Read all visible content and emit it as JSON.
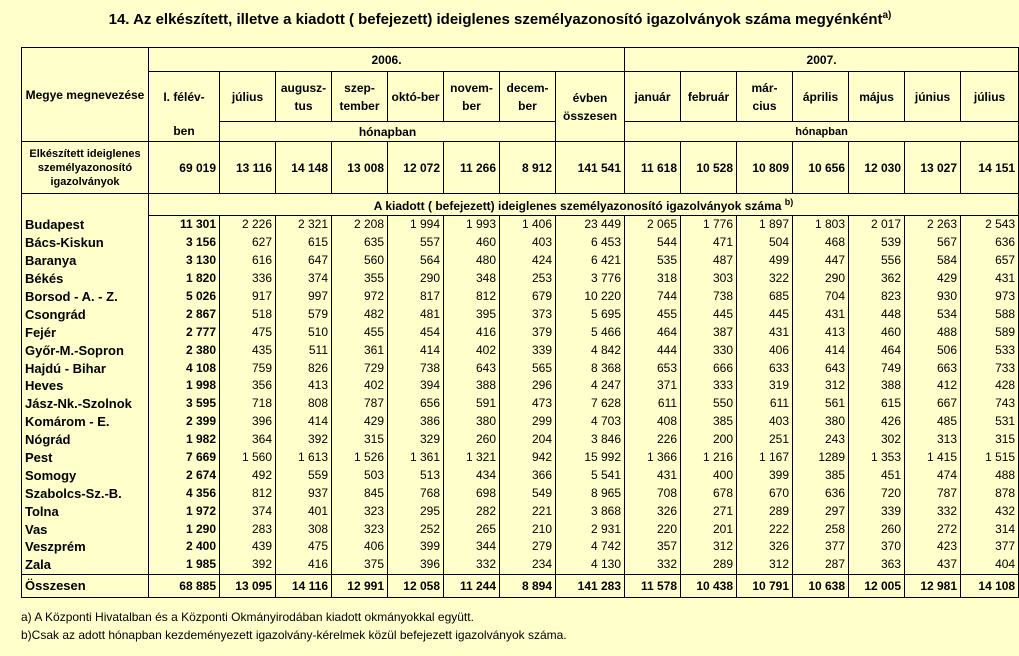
{
  "title": "14. Az elkészített, illetve a kiadott ( befejezett) ideiglenes személyazonosító  igazolványok száma megyénként",
  "title_sup": "a)",
  "header": {
    "county_col": "Megye megnevezése",
    "year2006": "2006.",
    "year2007": "2007.",
    "first_half_top": "I. félév-",
    "first_half_bottom": "ben",
    "months2006": [
      "július",
      "augusz-tus",
      "szep-tember",
      "októ-ber",
      "novem-ber",
      "decem-ber"
    ],
    "year_total": "évben összesen",
    "months2007": [
      "január",
      "február",
      "már-cius",
      "április",
      "május",
      "június",
      "július"
    ],
    "in_month": "hónapban"
  },
  "prepared_row": {
    "label": "Elkészített ideiglenes személyazonosító igazolványok",
    "values": [
      "69 019",
      "13 116",
      "14 148",
      "13 008",
      "12 072",
      "11 266",
      "8 912",
      "141 541",
      "11 618",
      "10 528",
      "10 809",
      "10 656",
      "12 030",
      "13 027",
      "14 151"
    ]
  },
  "issued_header": "A kiadott ( befejezett)  ideiglenes személyazonosító igazolványok száma",
  "issued_header_sup": "b)",
  "rows": [
    {
      "county": "Budapest",
      "values": [
        "11 301",
        "2 226",
        "2 321",
        "2 208",
        "1 994",
        "1 993",
        "1 406",
        "23 449",
        "2 065",
        "1 776",
        "1 897",
        "1 803",
        "2 017",
        "2 263",
        "2 543"
      ]
    },
    {
      "county": "Bács-Kiskun",
      "values": [
        "3 156",
        "627",
        "615",
        "635",
        "557",
        "460",
        "403",
        "6 453",
        "544",
        "471",
        "504",
        "468",
        "539",
        "567",
        "636"
      ]
    },
    {
      "county": "Baranya",
      "values": [
        "3 130",
        "616",
        "647",
        "560",
        "564",
        "480",
        "424",
        "6 421",
        "535",
        "487",
        "499",
        "447",
        "556",
        "584",
        "657"
      ]
    },
    {
      "county": "Békés",
      "values": [
        "1 820",
        "336",
        "374",
        "355",
        "290",
        "348",
        "253",
        "3 776",
        "318",
        "303",
        "322",
        "290",
        "362",
        "429",
        "431"
      ]
    },
    {
      "county": "Borsod - A. - Z.",
      "values": [
        "5 026",
        "917",
        "997",
        "972",
        "817",
        "812",
        "679",
        "10 220",
        "744",
        "738",
        "685",
        "704",
        "823",
        "930",
        "973"
      ]
    },
    {
      "county": "Csongrád",
      "values": [
        "2 867",
        "518",
        "579",
        "482",
        "481",
        "395",
        "373",
        "5 695",
        "455",
        "445",
        "445",
        "431",
        "448",
        "534",
        "588"
      ]
    },
    {
      "county": "Fejér",
      "values": [
        "2 777",
        "475",
        "510",
        "455",
        "454",
        "416",
        "379",
        "5 466",
        "464",
        "387",
        "431",
        "413",
        "460",
        "488",
        "589"
      ]
    },
    {
      "county": "Győr-M.-Sopron",
      "values": [
        "2 380",
        "435",
        "511",
        "361",
        "414",
        "402",
        "339",
        "4 842",
        "444",
        "330",
        "406",
        "414",
        "464",
        "506",
        "533"
      ]
    },
    {
      "county": "Hajdú - Bihar",
      "values": [
        "4 108",
        "759",
        "826",
        "729",
        "738",
        "643",
        "565",
        "8 368",
        "653",
        "666",
        "633",
        "643",
        "749",
        "663",
        "733"
      ]
    },
    {
      "county": "Heves",
      "values": [
        "1 998",
        "356",
        "413",
        "402",
        "394",
        "388",
        "296",
        "4 247",
        "371",
        "333",
        "319",
        "312",
        "388",
        "412",
        "428"
      ]
    },
    {
      "county": "Jász-Nk.-Szolnok",
      "values": [
        "3 595",
        "718",
        "808",
        "787",
        "656",
        "591",
        "473",
        "7 628",
        "611",
        "550",
        "611",
        "561",
        "615",
        "667",
        "743"
      ]
    },
    {
      "county": "Komárom - E.",
      "values": [
        "2 399",
        "396",
        "414",
        "429",
        "386",
        "380",
        "299",
        "4 703",
        "408",
        "385",
        "403",
        "380",
        "426",
        "485",
        "531"
      ]
    },
    {
      "county": "Nógrád",
      "values": [
        "1 982",
        "364",
        "392",
        "315",
        "329",
        "260",
        "204",
        "3 846",
        "226",
        "200",
        "251",
        "243",
        "302",
        "313",
        "315"
      ]
    },
    {
      "county": "Pest",
      "values": [
        "7 669",
        "1 560",
        "1 613",
        "1 526",
        "1 361",
        "1 321",
        "942",
        "15 992",
        "1 366",
        "1 216",
        "1 167",
        "1289",
        "1 353",
        "1 415",
        "1 515"
      ]
    },
    {
      "county": "Somogy",
      "values": [
        "2 674",
        "492",
        "559",
        "503",
        "513",
        "434",
        "366",
        "5 541",
        "431",
        "400",
        "399",
        "385",
        "451",
        "474",
        "488"
      ]
    },
    {
      "county": "Szabolcs-Sz.-B.",
      "values": [
        "4 356",
        "812",
        "937",
        "845",
        "768",
        "698",
        "549",
        "8 965",
        "708",
        "678",
        "670",
        "636",
        "720",
        "787",
        "878"
      ]
    },
    {
      "county": "Tolna",
      "values": [
        "1 972",
        "374",
        "401",
        "323",
        "295",
        "282",
        "221",
        "3 868",
        "326",
        "271",
        "289",
        "297",
        "339",
        "332",
        "432"
      ]
    },
    {
      "county": "Vas",
      "values": [
        "1 290",
        "283",
        "308",
        "323",
        "252",
        "265",
        "210",
        "2 931",
        "220",
        "201",
        "222",
        "258",
        "260",
        "272",
        "314"
      ]
    },
    {
      "county": "Veszprém",
      "values": [
        "2 400",
        "439",
        "475",
        "406",
        "399",
        "344",
        "279",
        "4 742",
        "357",
        "312",
        "326",
        "377",
        "370",
        "423",
        "377"
      ]
    },
    {
      "county": "Zala",
      "values": [
        "1 985",
        "392",
        "416",
        "375",
        "396",
        "332",
        "234",
        "4 130",
        "332",
        "289",
        "312",
        "287",
        "363",
        "437",
        "404"
      ]
    }
  ],
  "total_row": {
    "label": "Összesen",
    "values": [
      "68 885",
      "13 095",
      "14 116",
      "12 991",
      "12 058",
      "11 244",
      "8 894",
      "141 283",
      "11 578",
      "10 438",
      "10 791",
      "10 638",
      "12 005",
      "12 981",
      "14 108"
    ]
  },
  "footnotes": [
    "a) A Központi Hivatalban és a Központi Okmányirodában kiadott okmányokkal együtt.",
    "b)Csak az adott hónapban kezdeményezett igazolvány-kérelmek közül befejezett igazolványok száma."
  ]
}
